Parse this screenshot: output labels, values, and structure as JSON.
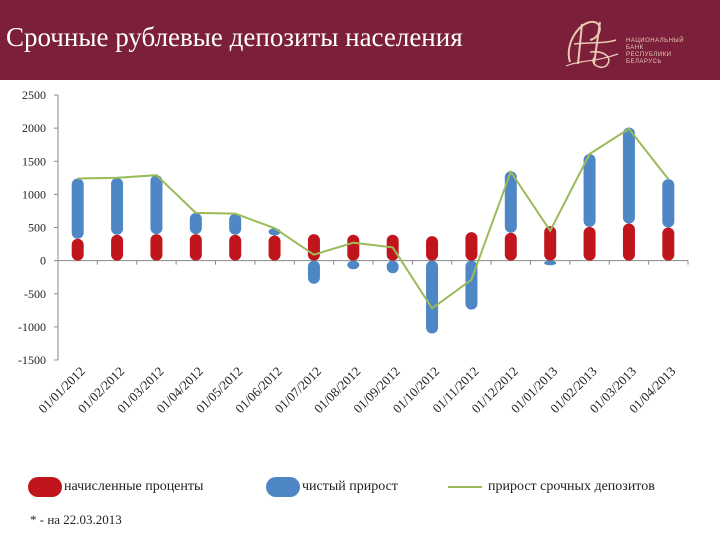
{
  "header": {
    "title": "Срочные рублевые депозиты населения",
    "logo_lines": [
      "НАЦИОНАЛЬНЫЙ",
      "БАНК",
      "РЕСПУБЛИКИ",
      "БЕЛАРУСЬ"
    ]
  },
  "colors": {
    "header_bg": "#7b1f3a",
    "interest": "#c0151c",
    "net_growth": "#4e86c6",
    "line": "#9bbb59"
  },
  "footnote": "* - на 22.03.2013",
  "chart_data": {
    "type": "bar",
    "title": "",
    "xlabel": "",
    "ylabel": "",
    "ylim": [
      -1500,
      2500
    ],
    "yticks": [
      -1500,
      -1000,
      -500,
      0,
      500,
      1000,
      1500,
      2000,
      2500
    ],
    "categories": [
      "01/01/2012",
      "01/02/2012",
      "01/03/2012",
      "01/04/2012",
      "01/05/2012",
      "01/06/2012",
      "01/07/2012",
      "01/08/2012",
      "01/09/2012",
      "01/10/2012",
      "01/11/2012",
      "01/12/2012",
      "01/01/2013",
      "01/02/2013",
      "01/03/2013",
      "01/04/2013"
    ],
    "legend_position": "bottom",
    "grid": false,
    "series": [
      {
        "name": "начисленные проценты",
        "kind": "bar",
        "values": [
          330,
          390,
          400,
          400,
          390,
          380,
          400,
          390,
          390,
          370,
          430,
          420,
          520,
          510,
          560,
          500
        ]
      },
      {
        "name": "чистый прирост",
        "kind": "bar",
        "values": [
          910,
          860,
          890,
          320,
          320,
          110,
          -350,
          -130,
          -190,
          -1100,
          -740,
          930,
          -70,
          1100,
          1450,
          730
        ]
      },
      {
        "name": "прирост срочных депозитов",
        "kind": "line",
        "values": [
          1240,
          1250,
          1290,
          720,
          710,
          490,
          90,
          270,
          200,
          -720,
          -290,
          1340,
          450,
          1610,
          1990,
          1230
        ]
      }
    ]
  }
}
